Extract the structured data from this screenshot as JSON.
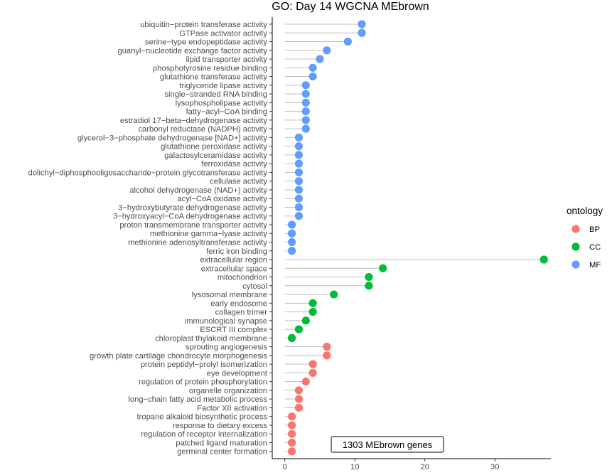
{
  "chart_data": {
    "type": "lollipop",
    "title": "GO: Day 14 WGCNA MEbrown",
    "xlabel": "",
    "ylabel": "",
    "xlim": [
      -1.8,
      38
    ],
    "xticks": [
      0,
      10,
      20,
      30
    ],
    "grid": false,
    "legend": {
      "title": "ontology",
      "position": "right",
      "entries": [
        {
          "name": "BP",
          "color": "#F8766D"
        },
        {
          "name": "CC",
          "color": "#00BA38"
        },
        {
          "name": "MF",
          "color": "#619CFF"
        }
      ]
    },
    "annotation": "1303 MEbrown genes",
    "categories": [
      {
        "term": "ubiquitin−protein transferase activity",
        "value": 11,
        "ontology": "MF"
      },
      {
        "term": "GTPase activator activity",
        "value": 11,
        "ontology": "MF"
      },
      {
        "term": "serine−type endopeptidase activity",
        "value": 9,
        "ontology": "MF"
      },
      {
        "term": "guanyl−nucleotide exchange factor activity",
        "value": 6,
        "ontology": "MF"
      },
      {
        "term": "lipid transporter activity",
        "value": 5,
        "ontology": "MF"
      },
      {
        "term": "phosphotyrosine residue binding",
        "value": 4,
        "ontology": "MF"
      },
      {
        "term": "glutathione transferase activity",
        "value": 4,
        "ontology": "MF"
      },
      {
        "term": "triglyceride lipase activity",
        "value": 3,
        "ontology": "MF"
      },
      {
        "term": "single−stranded RNA binding",
        "value": 3,
        "ontology": "MF"
      },
      {
        "term": "lysophospholipase activity",
        "value": 3,
        "ontology": "MF"
      },
      {
        "term": "fatty−acyl−CoA binding",
        "value": 3,
        "ontology": "MF"
      },
      {
        "term": "estradiol 17−beta−dehydrogenase activity",
        "value": 3,
        "ontology": "MF"
      },
      {
        "term": "carbonyl reductase (NADPH) activity",
        "value": 3,
        "ontology": "MF"
      },
      {
        "term": "glycerol−3−phosphate dehydrogenase [NAD+] activity",
        "value": 2,
        "ontology": "MF"
      },
      {
        "term": "glutathione peroxidase activity",
        "value": 2,
        "ontology": "MF"
      },
      {
        "term": "galactosylceramidase activity",
        "value": 2,
        "ontology": "MF"
      },
      {
        "term": "ferroxidase activity",
        "value": 2,
        "ontology": "MF"
      },
      {
        "term": "dolichyl−diphosphooligosaccharide−protein glycotransferase activity",
        "value": 2,
        "ontology": "MF"
      },
      {
        "term": "cellulase activity",
        "value": 2,
        "ontology": "MF"
      },
      {
        "term": "alcohol dehydrogenase (NAD+) activity",
        "value": 2,
        "ontology": "MF"
      },
      {
        "term": "acyl−CoA oxidase activity",
        "value": 2,
        "ontology": "MF"
      },
      {
        "term": "3−hydroxybutyrate dehydrogenase activity",
        "value": 2,
        "ontology": "MF"
      },
      {
        "term": "3−hydroxyacyl−CoA dehydrogenase activity",
        "value": 2,
        "ontology": "MF"
      },
      {
        "term": "proton transmembrane transporter activity",
        "value": 1,
        "ontology": "MF"
      },
      {
        "term": "methionine gamma−lyase activity",
        "value": 1,
        "ontology": "MF"
      },
      {
        "term": "methionine adenosyltransferase activity",
        "value": 1,
        "ontology": "MF"
      },
      {
        "term": "ferric iron binding",
        "value": 1,
        "ontology": "MF"
      },
      {
        "term": "extracellular region",
        "value": 37,
        "ontology": "CC"
      },
      {
        "term": "extracellular space",
        "value": 14,
        "ontology": "CC"
      },
      {
        "term": "mitochondrion",
        "value": 12,
        "ontology": "CC"
      },
      {
        "term": "cytosol",
        "value": 12,
        "ontology": "CC"
      },
      {
        "term": "lysosomal membrane",
        "value": 7,
        "ontology": "CC"
      },
      {
        "term": "early endosome",
        "value": 4,
        "ontology": "CC"
      },
      {
        "term": "collagen trimer",
        "value": 4,
        "ontology": "CC"
      },
      {
        "term": "immunological synapse",
        "value": 3,
        "ontology": "CC"
      },
      {
        "term": "ESCRT III complex",
        "value": 2,
        "ontology": "CC"
      },
      {
        "term": "chloroplast thylakoid membrane",
        "value": 1,
        "ontology": "CC"
      },
      {
        "term": "sprouting angiogenesis",
        "value": 6,
        "ontology": "BP"
      },
      {
        "term": "growth plate cartilage chondrocyte morphogenesis",
        "value": 6,
        "ontology": "BP"
      },
      {
        "term": "protein peptidyl−prolyl isomerization",
        "value": 4,
        "ontology": "BP"
      },
      {
        "term": "eye development",
        "value": 4,
        "ontology": "BP"
      },
      {
        "term": "regulation of protein phosphorylation",
        "value": 3,
        "ontology": "BP"
      },
      {
        "term": "organelle organization",
        "value": 2,
        "ontology": "BP"
      },
      {
        "term": "long−chain fatty acid metabolic process",
        "value": 2,
        "ontology": "BP"
      },
      {
        "term": "Factor XII activation",
        "value": 2,
        "ontology": "BP"
      },
      {
        "term": "tropane alkaloid biosynthetic process",
        "value": 1,
        "ontology": "BP"
      },
      {
        "term": "response to dietary excess",
        "value": 1,
        "ontology": "BP"
      },
      {
        "term": "regulation of receptor internalization",
        "value": 1,
        "ontology": "BP"
      },
      {
        "term": "patched ligand maturation",
        "value": 1,
        "ontology": "BP"
      },
      {
        "term": "germinal center formation",
        "value": 1,
        "ontology": "BP"
      }
    ]
  }
}
